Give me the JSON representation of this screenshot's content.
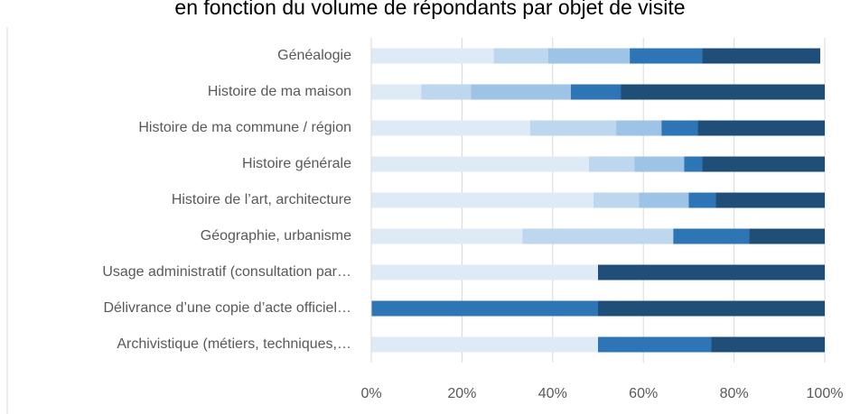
{
  "chart_data": {
    "type": "stacked_barh",
    "title": "en fonction du volume de répondants par objet de visite",
    "categories": [
      "Généalogie",
      "Histoire de ma maison",
      "Histoire de ma commune / région",
      "Histoire générale",
      "Histoire de l’art, architecture",
      "Géographie, urbanisme",
      "Usage administratif (consultation par…",
      "Délivrance d’une copie d’acte officiel…",
      "Archivistique (métiers, techniques,…"
    ],
    "series": [
      {
        "color": "#deebf7",
        "values": [
          27,
          11,
          35,
          48,
          49,
          33.3,
          50,
          0,
          50
        ]
      },
      {
        "color": "#bdd7ee",
        "values": [
          12,
          11,
          19,
          10,
          10,
          33.3,
          0,
          0,
          0
        ]
      },
      {
        "color": "#9dc3e6",
        "values": [
          18,
          22,
          10,
          11,
          11,
          0,
          0,
          0,
          0
        ]
      },
      {
        "color": "#2e75b6",
        "values": [
          16,
          11,
          8,
          4,
          6,
          16.7,
          0,
          50,
          25
        ]
      },
      {
        "color": "#1f4e79",
        "values": [
          26,
          45,
          28,
          27,
          24,
          16.7,
          50,
          50,
          25
        ]
      }
    ],
    "xlim": [
      0,
      100
    ],
    "xticks": [
      {
        "value": 0,
        "label": "0%"
      },
      {
        "value": 20,
        "label": "20%"
      },
      {
        "value": 40,
        "label": "40%"
      },
      {
        "value": 60,
        "label": "60%"
      },
      {
        "value": 80,
        "label": "80%"
      },
      {
        "value": 100,
        "label": "100%"
      }
    ],
    "grid": true
  }
}
